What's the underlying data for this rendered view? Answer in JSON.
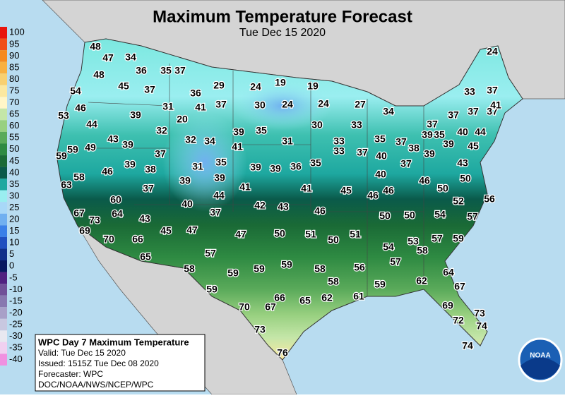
{
  "header": {
    "title": "Maximum Temperature Forecast",
    "subtitle": "Tue Dec 15 2020"
  },
  "legend": {
    "values": [
      100,
      95,
      90,
      85,
      80,
      75,
      70,
      65,
      60,
      55,
      50,
      45,
      40,
      35,
      30,
      25,
      20,
      15,
      10,
      5,
      0,
      -5,
      -10,
      -15,
      -20,
      -25,
      -30,
      -35,
      -40
    ],
    "colors": [
      "#e8140c",
      "#f0501a",
      "#f58a20",
      "#f8b040",
      "#f8d070",
      "#fbe8a0",
      "#fff6c8",
      "#c4e6a8",
      "#98d080",
      "#5aaa5a",
      "#2e8a42",
      "#1a6a36",
      "#0a5a4a",
      "#1ea8a0",
      "#9aeef0",
      "#a8d8f8",
      "#70b0f0",
      "#3a80e8",
      "#2050c0",
      "#10308a",
      "#081860",
      "#502080",
      "#705098",
      "#8878b0",
      "#a8a0c8",
      "#c8c8e0",
      "#e8e8f0",
      "#f0d0f0",
      "#f090e0"
    ]
  },
  "info": {
    "title": "WPC Day 7 Maximum Temperature",
    "valid": "Valid: Tue Dec 15 2020",
    "issued": "Issued: 1515Z Tue Dec 08 2020",
    "forecaster": "Forecaster: WPC",
    "source": "DOC/NOAA/NWS/NCEP/WPC"
  },
  "logo": "NOAA",
  "stations": {
    "values": [
      48,
      47,
      34,
      36,
      35,
      37,
      48,
      45,
      37,
      54,
      36,
      29,
      24,
      19,
      19,
      24,
      33,
      37,
      46,
      39,
      31,
      41,
      37,
      30,
      24,
      24,
      27,
      34,
      37,
      37,
      37,
      41,
      53,
      44,
      20,
      30,
      33,
      37,
      40,
      44,
      32,
      39,
      35,
      32,
      34,
      31,
      33,
      35,
      37,
      39,
      35,
      43,
      39,
      59,
      59,
      49,
      37,
      41,
      33,
      37,
      38,
      39,
      39,
      45,
      46,
      39,
      38,
      31,
      35,
      39,
      39,
      36,
      35,
      40,
      37,
      43,
      58,
      39,
      39,
      40,
      46,
      50,
      63,
      37,
      41,
      41,
      45,
      46,
      46,
      50,
      44,
      60,
      40,
      42,
      43,
      46,
      52,
      56,
      67,
      73,
      64,
      43,
      37,
      50,
      50,
      54,
      57,
      69,
      45,
      47,
      47,
      50,
      51,
      50,
      51,
      70,
      66,
      57,
      59,
      53,
      58,
      54,
      57,
      65,
      57,
      56,
      59,
      59,
      59,
      58,
      58,
      64,
      58,
      59,
      62,
      67,
      59,
      61,
      66,
      65,
      62,
      70,
      67,
      69,
      73,
      72,
      74,
      73,
      76,
      74
    ]
  }
}
